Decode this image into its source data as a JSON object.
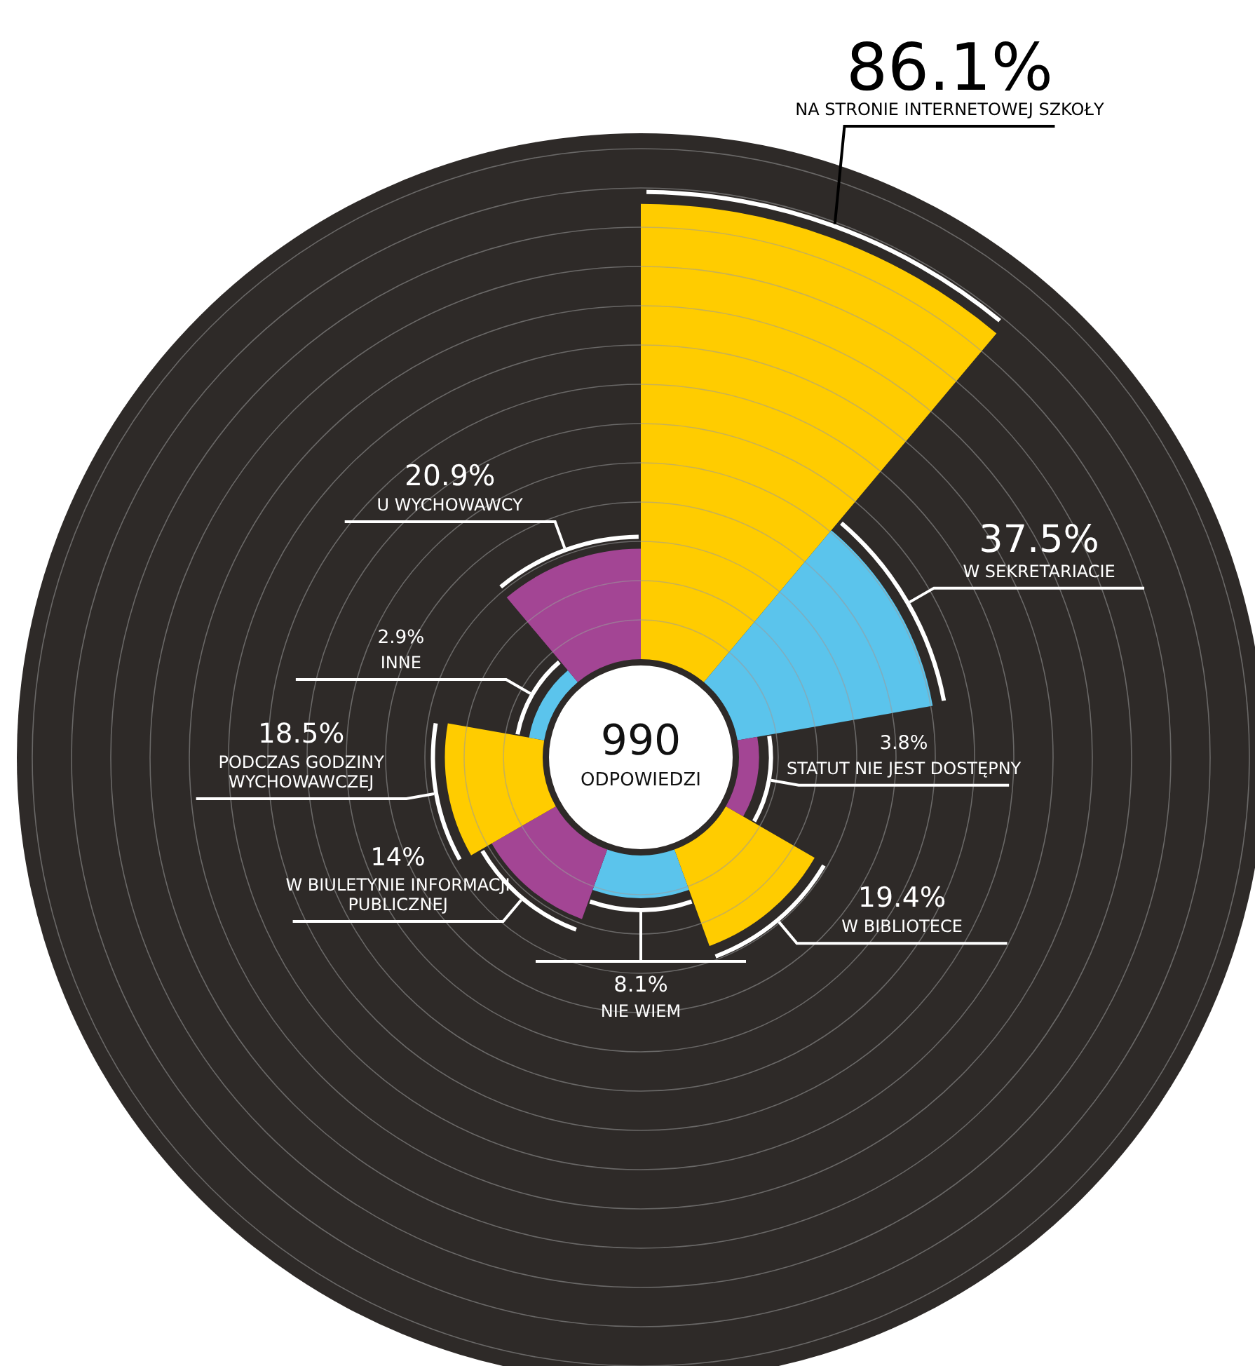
{
  "chart_data": {
    "type": "other",
    "categories": [
      "NA STRONIE INTERNETOWEJ SZKOŁY",
      "W SEKRETARIACIE",
      "STATUT NIE JEST DOSTĘPNY",
      "W BIBLIOTECE",
      "NIE WIEM",
      "W BIULETYNIE INFORMACJI PUBLICZNEJ",
      "PODCZAS GODZINY WYCHOWAWCZEJ",
      "INNE",
      "U WYCHOWAWCY"
    ],
    "values": [
      86.1,
      37.5,
      3.8,
      19.4,
      8.1,
      14,
      18.5,
      2.9,
      20.9
    ],
    "value_labels": [
      "86.1%",
      "37.5%",
      "3.8%",
      "19.4%",
      "8.1%",
      "14%",
      "18.5%",
      "2.9%",
      "20.9%"
    ],
    "colors": [
      "#ffcc00",
      "#5bc4ec",
      "#a34594",
      "#ffcc00",
      "#5bc4ec",
      "#a34594",
      "#ffcc00",
      "#5bc4ec",
      "#a34594"
    ],
    "annotations": [
      "990",
      "ODPOWIEDZI"
    ]
  }
}
